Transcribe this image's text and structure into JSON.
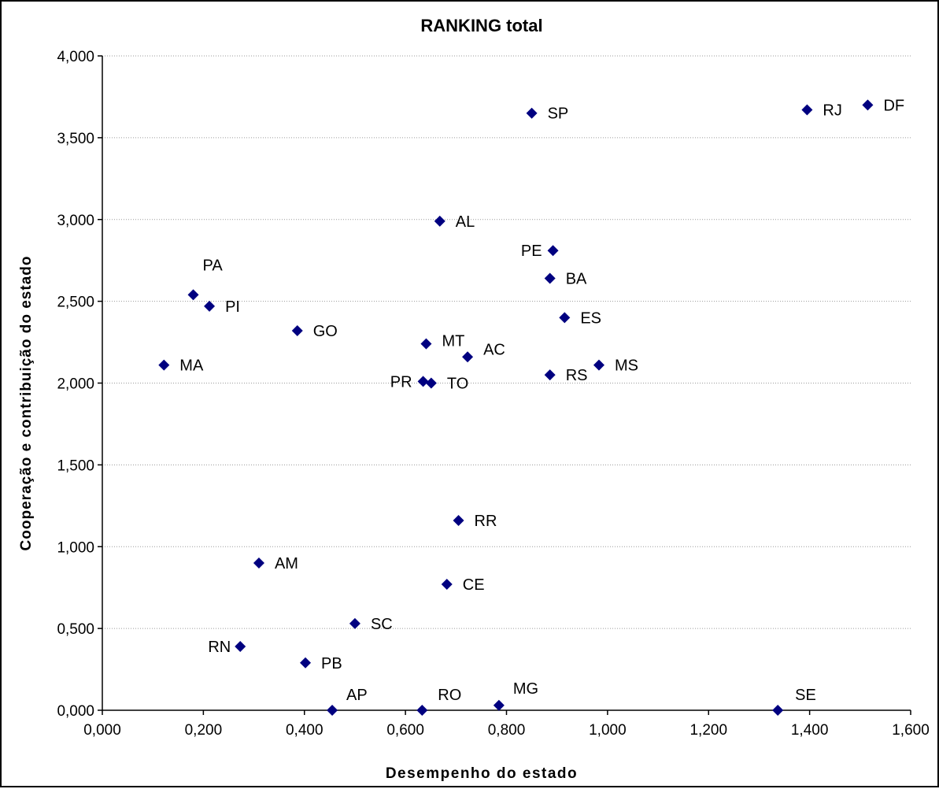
{
  "chart_data": {
    "type": "scatter",
    "title": "RANKING total",
    "xlabel": "Desempenho do estado",
    "ylabel": "Cooperação e contribuição do estado",
    "xlim": [
      0,
      1.6
    ],
    "ylim": [
      0,
      4.0
    ],
    "x_ticks": [
      0,
      0.2,
      0.4,
      0.6,
      0.8,
      1.0,
      1.2,
      1.4,
      1.6
    ],
    "y_ticks": [
      0,
      0.5,
      1.0,
      1.5,
      2.0,
      2.5,
      3.0,
      3.5,
      4.0
    ],
    "x_tick_labels": [
      "0,000",
      "0,200",
      "0,400",
      "0,600",
      "0,800",
      "1,000",
      "1,200",
      "1,400",
      "1,600"
    ],
    "y_tick_labels": [
      "0,000",
      "0,500",
      "1,000",
      "1,500",
      "2,000",
      "2,500",
      "3,000",
      "3,500",
      "4,000"
    ],
    "grid": "horizontal dotted",
    "legend": "none",
    "marker_color": "#000080",
    "points": [
      {
        "label": "DF",
        "x": 1.515,
        "y": 3.7
      },
      {
        "label": "RJ",
        "x": 1.395,
        "y": 3.67
      },
      {
        "label": "SP",
        "x": 0.85,
        "y": 3.65
      },
      {
        "label": "AL",
        "x": 0.668,
        "y": 2.99
      },
      {
        "label": "PE",
        "x": 0.892,
        "y": 2.81
      },
      {
        "label": "BA",
        "x": 0.886,
        "y": 2.64
      },
      {
        "label": "PA",
        "x": 0.18,
        "y": 2.54
      },
      {
        "label": "PI",
        "x": 0.212,
        "y": 2.47
      },
      {
        "label": "ES",
        "x": 0.915,
        "y": 2.4
      },
      {
        "label": "GO",
        "x": 0.386,
        "y": 2.32
      },
      {
        "label": "MT",
        "x": 0.641,
        "y": 2.24
      },
      {
        "label": "AC",
        "x": 0.723,
        "y": 2.16
      },
      {
        "label": "MA",
        "x": 0.122,
        "y": 2.11
      },
      {
        "label": "MS",
        "x": 0.983,
        "y": 2.11
      },
      {
        "label": "RS",
        "x": 0.886,
        "y": 2.05
      },
      {
        "label": "PR",
        "x": 0.635,
        "y": 2.01
      },
      {
        "label": "TO",
        "x": 0.651,
        "y": 2.0
      },
      {
        "label": "RR",
        "x": 0.705,
        "y": 1.16
      },
      {
        "label": "AM",
        "x": 0.31,
        "y": 0.9
      },
      {
        "label": "CE",
        "x": 0.682,
        "y": 0.77
      },
      {
        "label": "SC",
        "x": 0.5,
        "y": 0.53
      },
      {
        "label": "RN",
        "x": 0.273,
        "y": 0.39
      },
      {
        "label": "PB",
        "x": 0.402,
        "y": 0.29
      },
      {
        "label": "MG",
        "x": 0.785,
        "y": 0.03
      },
      {
        "label": "AP",
        "x": 0.455,
        "y": 0.0
      },
      {
        "label": "RO",
        "x": 0.633,
        "y": 0.0
      },
      {
        "label": "SE",
        "x": 1.337,
        "y": 0.0
      }
    ]
  }
}
